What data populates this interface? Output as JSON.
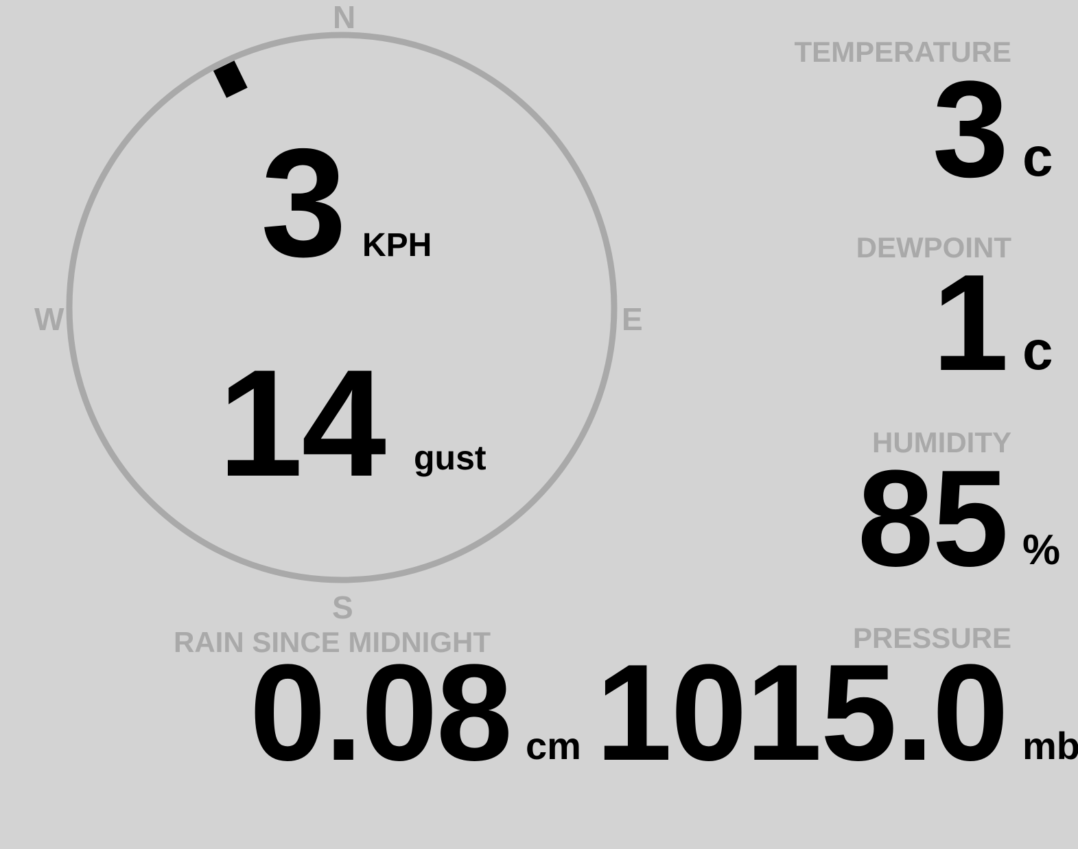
{
  "colors": {
    "background": "#d3d3d3",
    "label": "#a9a9a9",
    "value": "#000000"
  },
  "compass": {
    "north": "N",
    "east": "E",
    "south": "S",
    "west": "W",
    "wind_direction_deg": 334
  },
  "wind": {
    "speed": "3",
    "speed_unit": "KPH",
    "gust": "14",
    "gust_unit": "gust"
  },
  "temperature": {
    "label": "TEMPERATURE",
    "value": "3",
    "unit": "c"
  },
  "dewpoint": {
    "label": "DEWPOINT",
    "value": "1",
    "unit": "c"
  },
  "humidity": {
    "label": "HUMIDITY",
    "value": "85",
    "unit": "%"
  },
  "rain": {
    "label": "RAIN SINCE MIDNIGHT",
    "value": "0.08",
    "unit": "cm"
  },
  "pressure": {
    "label": "PRESSURE",
    "value": "1015.0",
    "unit": "mb"
  }
}
